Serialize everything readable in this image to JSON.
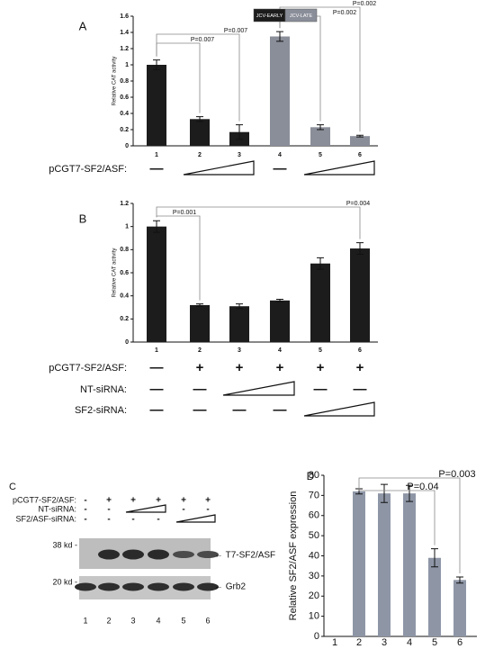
{
  "chart_data": [
    {
      "type": "bar",
      "panel": "A",
      "ylabel": "Relative CAT activity",
      "categories": [
        "1",
        "2",
        "3",
        "4",
        "5",
        "6"
      ],
      "series": [
        {
          "name": "JCV-EARLY",
          "color": "#1c1c1c",
          "values": [
            1.0,
            0.33,
            0.17,
            null,
            null,
            null
          ],
          "errors": [
            0.06,
            0.03,
            0.09,
            null,
            null,
            null
          ]
        },
        {
          "name": "JCV-LATE",
          "color": "#8a8e99",
          "values": [
            null,
            null,
            null,
            1.35,
            0.23,
            0.12
          ],
          "errors": [
            null,
            null,
            null,
            0.06,
            0.03,
            0.01
          ]
        }
      ],
      "ylim": [
        0,
        1.6
      ],
      "yticks": [
        0,
        0.2,
        0.4,
        0.6,
        0.8,
        1,
        1.2,
        1.4,
        1.6
      ],
      "brackets": [
        {
          "label": "P=0.007"
        },
        {
          "label": "P=0.007"
        },
        {
          "label": "P=0.002"
        },
        {
          "label": "P=0.002"
        }
      ],
      "treatments": [
        {
          "label": "pCGT7-SF2/ASF:",
          "symbols": [
            "—",
            null,
            null,
            "—",
            null,
            null
          ]
        }
      ]
    },
    {
      "type": "bar",
      "panel": "B",
      "ylabel": "Relative CAT activity",
      "categories": [
        "1",
        "2",
        "3",
        "4",
        "5",
        "6"
      ],
      "series": [
        {
          "color": "#1c1c1c",
          "values": [
            1.0,
            0.32,
            0.31,
            0.36,
            0.68,
            0.81
          ],
          "errors": [
            0.05,
            0.01,
            0.02,
            0.01,
            0.05,
            0.05
          ]
        }
      ],
      "ylim": [
        0,
        1.2
      ],
      "yticks": [
        0,
        0.2,
        0.4,
        0.6,
        0.8,
        1,
        1.2
      ],
      "brackets": [
        {
          "label": "P=0.001"
        },
        {
          "label": "P=0.004"
        }
      ],
      "treatments": [
        {
          "label": "pCGT7-SF2/ASF:",
          "symbols": [
            "—",
            "+",
            "+",
            "+",
            "+",
            "+"
          ]
        },
        {
          "label": "NT-siRNA:",
          "symbols": [
            "—",
            "—",
            null,
            null,
            "—",
            "—"
          ]
        },
        {
          "label": "SF2-siRNA:",
          "symbols": [
            "—",
            "—",
            "—",
            "—",
            null,
            null
          ]
        }
      ]
    },
    {
      "type": "bar",
      "panel": "D",
      "ylabel": "Relative SF2/ASF expression",
      "categories": [
        "1",
        "2",
        "3",
        "4",
        "5",
        "6"
      ],
      "series": [
        {
          "color": "#8e96a6",
          "values": [
            0,
            72,
            71,
            71,
            39,
            28
          ],
          "errors": [
            0,
            1.3,
            4.5,
            4,
            4.5,
            1.5
          ]
        }
      ],
      "ylim": [
        0,
        80
      ],
      "yticks": [
        0,
        10,
        20,
        30,
        40,
        50,
        60,
        70,
        80
      ],
      "brackets": [
        {
          "label": "P=0.04"
        },
        {
          "label": "P=0.003"
        }
      ],
      "treatments": []
    }
  ],
  "blot": {
    "panel": "C",
    "treatments": [
      {
        "label": "pCGT7-SF2/ASF:",
        "symbols": [
          "-",
          "+",
          "+",
          "+",
          "+",
          "+"
        ]
      },
      {
        "label": "NT-siRNA:",
        "symbols": [
          "-",
          "-",
          null,
          null,
          "-",
          "-"
        ]
      },
      {
        "label": "SF2/ASF-siRNA:",
        "symbols": [
          "-",
          "-",
          "-",
          "-",
          null,
          null
        ]
      }
    ],
    "markers": [
      "38 kd -",
      "20 kd -"
    ],
    "bands": [
      "← T7-SF2/ASF",
      "← Grb2"
    ],
    "lanes": [
      "1",
      "2",
      "3",
      "4",
      "5",
      "6"
    ]
  }
}
